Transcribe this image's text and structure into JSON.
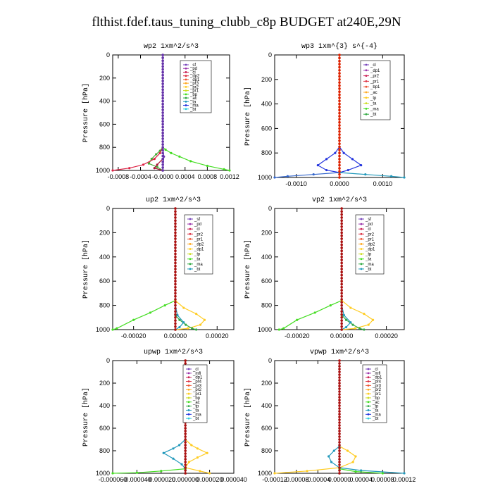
{
  "title": "flthist.fdef.taus_tuning_clubb_c8p  BUDGET at240E,29N",
  "chart_data": [
    {
      "id": "wp2",
      "type": "line",
      "title": "wp2  1xm^2/s^3",
      "ylabel": "Pressure [hPa]",
      "xlim": [
        -0.0009,
        0.0012
      ],
      "ylim": [
        1000,
        0
      ],
      "xticks": [
        -0.0008,
        -0.0004,
        0.0,
        0.0004,
        0.0008,
        0.0012
      ],
      "xtick_labels": [
        "-0.0008",
        "-0.0004",
        "-0.0000",
        "0.0004",
        "0.0008",
        "0.0012"
      ],
      "yticks": [
        0,
        200,
        400,
        600,
        800,
        1000
      ],
      "legend": [
        "_sf",
        "_pd",
        "_cl",
        "_dp2",
        "_dp1",
        "_pr3",
        "_pr2",
        "_pr1",
        "_bp",
        "_ac",
        "_ta",
        "_ma",
        "_bt"
      ],
      "series": [
        {
          "name": "_pr1",
          "color": "#44dd22",
          "points": [
            [
              0,
              800
            ],
            [
              5e-05,
              820
            ],
            [
              0.00015,
              850
            ],
            [
              0.0003,
              880
            ],
            [
              0.0005,
              920
            ],
            [
              0.0008,
              960
            ],
            [
              0.0011,
              990
            ],
            [
              0.0012,
              1000
            ]
          ]
        },
        {
          "name": "_bp",
          "color": "#44aa33",
          "points": [
            [
              0,
              800
            ],
            [
              -5e-05,
              830
            ],
            [
              -0.00012,
              860
            ],
            [
              -0.0002,
              900
            ],
            [
              -0.00025,
              940
            ],
            [
              -0.0001,
              970
            ],
            [
              0,
              1000
            ]
          ]
        },
        {
          "name": "_dp1",
          "color": "#dd2244",
          "points": [
            [
              0,
              800
            ],
            [
              -5e-05,
              850
            ],
            [
              -0.00015,
              900
            ],
            [
              -0.00035,
              950
            ],
            [
              -0.0006,
              980
            ],
            [
              -0.0009,
              1000
            ]
          ]
        },
        {
          "name": "_dp2",
          "color": "#aa1133",
          "points": [
            [
              0,
              900
            ],
            [
              -0.0001,
              950
            ],
            [
              -0.00015,
              980
            ],
            [
              0,
              1000
            ]
          ]
        },
        {
          "name": "_bt",
          "color": "#6633aa",
          "points": [
            [
              0,
              0
            ],
            [
              0,
              800
            ],
            [
              2e-05,
              880
            ],
            [
              0,
              1000
            ]
          ]
        }
      ]
    },
    {
      "id": "wp3",
      "type": "line",
      "title": "wp3  1xm^{3} s^{-4}",
      "ylabel": "Pressure [hPa]",
      "xlim": [
        -0.0015,
        0.0015
      ],
      "ylim": [
        1000,
        0
      ],
      "xticks": [
        -0.001,
        0.0,
        0.001
      ],
      "xtick_labels": [
        "-0.0010",
        "0.0000",
        "0.0010"
      ],
      "yticks": [
        0,
        200,
        400,
        600,
        800,
        1000
      ],
      "legend": [
        "_cl",
        "_dp1",
        "_pr2",
        "_pr1",
        "_bp1",
        "_ac",
        "_tp",
        "_ta",
        "_ma",
        "_bt"
      ],
      "series": [
        {
          "name": "_tp",
          "color": "#2233dd",
          "points": [
            [
              0,
              750
            ],
            [
              0.0001,
              800
            ],
            [
              0.0003,
              850
            ],
            [
              0.0005,
              900
            ],
            [
              0.0002,
              940
            ],
            [
              0,
              960
            ]
          ]
        },
        {
          "name": "_tp2",
          "color": "#2233dd",
          "points": [
            [
              0,
              750
            ],
            [
              -0.0001,
              800
            ],
            [
              -0.0003,
              850
            ],
            [
              -0.0005,
              900
            ],
            [
              -0.0003,
              940
            ],
            [
              0,
              960
            ]
          ]
        },
        {
          "name": "_ta",
          "color": "#3366cc",
          "points": [
            [
              0,
              960
            ],
            [
              -0.0006,
              975
            ],
            [
              -0.0012,
              990
            ],
            [
              -0.0015,
              1000
            ]
          ]
        },
        {
          "name": "_ta2",
          "color": "#2299bb",
          "points": [
            [
              0,
              960
            ],
            [
              0.0006,
              975
            ],
            [
              0.0012,
              990
            ],
            [
              0.0015,
              1000
            ]
          ]
        },
        {
          "name": "_bt",
          "color": "#dd2200",
          "points": [
            [
              0,
              0
            ],
            [
              0,
              1000
            ]
          ]
        }
      ]
    },
    {
      "id": "up2",
      "type": "line",
      "title": "up2  1xm^2/s^3",
      "ylabel": "Pressure [hPa]",
      "xlim": [
        -0.0003,
        0.00028
      ],
      "ylim": [
        1000,
        0
      ],
      "xticks": [
        -0.0002,
        0.0,
        0.0002
      ],
      "xtick_labels": [
        "-0.00020",
        "0.00000",
        "0.00020"
      ],
      "yticks": [
        0,
        200,
        400,
        600,
        800,
        1000
      ],
      "legend": [
        "_sf",
        "_pd",
        "_cl",
        "_pr2",
        "_pr1",
        "_dp2",
        "_dp1",
        "_tp",
        "_ta",
        "_ma",
        "_bt"
      ],
      "series": [
        {
          "name": "_dp1",
          "color": "#44dd22",
          "points": [
            [
              0,
              760
            ],
            [
              -5e-05,
              800
            ],
            [
              -0.00012,
              860
            ],
            [
              -0.0002,
              920
            ],
            [
              -0.00028,
              990
            ],
            [
              -0.0003,
              1000
            ]
          ]
        },
        {
          "name": "_pr1",
          "color": "#ffcc22",
          "points": [
            [
              0,
              760
            ],
            [
              4e-05,
              820
            ],
            [
              0.0001,
              870
            ],
            [
              0.00014,
              920
            ],
            [
              0.00012,
              960
            ],
            [
              6e-05,
              990
            ],
            [
              0,
              1000
            ]
          ]
        },
        {
          "name": "_dp2",
          "color": "#33aa44",
          "points": [
            [
              0,
              880
            ],
            [
              2e-05,
              920
            ],
            [
              5e-05,
              960
            ],
            [
              8e-05,
              990
            ],
            [
              0.0001,
              1000
            ]
          ]
        },
        {
          "name": "_tp",
          "color": "#2299bb",
          "points": [
            [
              0,
              800
            ],
            [
              1e-05,
              880
            ],
            [
              4e-05,
              940
            ],
            [
              2e-05,
              980
            ],
            [
              0,
              1000
            ]
          ]
        },
        {
          "name": "_bt",
          "color": "#aa1111",
          "points": [
            [
              0,
              0
            ],
            [
              0,
              1000
            ]
          ]
        }
      ]
    },
    {
      "id": "vp2",
      "type": "line",
      "title": "vp2  1xm^2/s^3",
      "ylabel": "Pressure [hPa]",
      "xlim": [
        -0.0003,
        0.00028
      ],
      "ylim": [
        1000,
        0
      ],
      "xticks": [
        -0.0002,
        0.0,
        0.0002
      ],
      "xtick_labels": [
        "-0.00020",
        "0.00000",
        "0.00020"
      ],
      "yticks": [
        0,
        200,
        400,
        600,
        800,
        1000
      ],
      "legend": [
        "_sf",
        "_pd",
        "_cl",
        "_pr2",
        "_pr1",
        "_dp2",
        "_dp1",
        "_tp",
        "_ta",
        "_ma",
        "_bt"
      ],
      "series": [
        {
          "name": "_dp1",
          "color": "#44dd22",
          "points": [
            [
              0,
              760
            ],
            [
              -5e-05,
              800
            ],
            [
              -0.00012,
              860
            ],
            [
              -0.0002,
              920
            ],
            [
              -0.00026,
              990
            ],
            [
              -0.00028,
              1000
            ]
          ]
        },
        {
          "name": "_pr1",
          "color": "#ffcc22",
          "points": [
            [
              0,
              760
            ],
            [
              4e-05,
              820
            ],
            [
              0.0001,
              870
            ],
            [
              0.00014,
              920
            ],
            [
              0.00012,
              960
            ],
            [
              6e-05,
              990
            ],
            [
              0,
              1000
            ]
          ]
        },
        {
          "name": "_dp2",
          "color": "#33aa44",
          "points": [
            [
              0,
              880
            ],
            [
              2e-05,
              920
            ],
            [
              5e-05,
              960
            ],
            [
              8e-05,
              990
            ],
            [
              0.0001,
              1000
            ]
          ]
        },
        {
          "name": "_tp",
          "color": "#2299bb",
          "points": [
            [
              0,
              800
            ],
            [
              1e-05,
              880
            ],
            [
              4e-05,
              940
            ],
            [
              2e-05,
              980
            ],
            [
              0,
              1000
            ]
          ]
        },
        {
          "name": "_bt",
          "color": "#aa1111",
          "points": [
            [
              0,
              0
            ],
            [
              0,
              1000
            ]
          ]
        }
      ]
    },
    {
      "id": "upwp",
      "type": "line",
      "title": "upwp  1xm^2/s^3",
      "ylabel": "Pressure [hPa]",
      "xlim": [
        -6e-05,
        4e-05
      ],
      "ylim": [
        1000,
        0
      ],
      "xticks": [
        -6e-05,
        -4e-05,
        -2e-05,
        0.0,
        2e-05,
        4e-05
      ],
      "xtick_labels": [
        "-0.000060",
        "-0.000040",
        "-0.000020",
        "0.000000",
        "0.000020",
        "0.000040"
      ],
      "yticks": [
        0,
        200,
        400,
        600,
        800,
        1000
      ],
      "legend": [
        "_cl",
        "_mfl",
        "_dp1",
        "_pr4",
        "_pr3",
        "_pr2",
        "_pr1",
        "_bp",
        "_ac",
        "_tp",
        "_ta",
        "_ma",
        "_bt"
      ],
      "series": [
        {
          "name": "_pr1",
          "color": "#ffcc22",
          "points": [
            [
              0,
              700
            ],
            [
              5e-06,
              750
            ],
            [
              1e-05,
              780
            ],
            [
              1.8e-05,
              820
            ],
            [
              1e-05,
              860
            ],
            [
              3e-06,
              900
            ],
            [
              0,
              950
            ],
            [
              1.2e-05,
              980
            ],
            [
              2e-05,
              1000
            ]
          ]
        },
        {
          "name": "_tp",
          "color": "#2299bb",
          "points": [
            [
              0,
              700
            ],
            [
              -5e-06,
              750
            ],
            [
              -1e-05,
              780
            ],
            [
              -1.8e-05,
              820
            ],
            [
              -1e-05,
              870
            ],
            [
              -3e-06,
              920
            ],
            [
              0,
              960
            ]
          ]
        },
        {
          "name": "_dp1",
          "color": "#44dd22",
          "points": [
            [
              0,
              960
            ],
            [
              -2e-05,
              980
            ],
            [
              -4e-05,
              995
            ],
            [
              -6e-05,
              1000
            ]
          ]
        },
        {
          "name": "_bp",
          "color": "#33aa44",
          "points": [
            [
              0,
              300
            ],
            [
              3e-06,
              350
            ],
            [
              0,
              400
            ],
            [
              4e-06,
              450
            ],
            [
              0,
              500
            ]
          ]
        },
        {
          "name": "_bt",
          "color": "#aa1111",
          "points": [
            [
              0,
              0
            ],
            [
              0,
              1000
            ]
          ]
        }
      ]
    },
    {
      "id": "vpwp",
      "type": "line",
      "title": "vpwp  1xm^2/s^3",
      "ylabel": "Pressure [hPa]",
      "xlim": [
        -0.00012,
        0.00012
      ],
      "ylim": [
        1000,
        0
      ],
      "xticks": [
        -0.00012,
        -8e-05,
        -4e-05,
        0.0,
        4e-05,
        8e-05,
        0.00012
      ],
      "xtick_labels": [
        "-0.00012",
        "-0.00008",
        "-0.00004",
        "0.00000",
        "0.00004",
        "0.00008",
        "0.00012"
      ],
      "yticks": [
        0,
        200,
        400,
        600,
        800,
        1000
      ],
      "legend": [
        "_cl",
        "_mfl",
        "_dp1",
        "_pr4",
        "_pr3",
        "_pr2",
        "_pr1",
        "_bp",
        "_ac",
        "_tp",
        "_ta",
        "_ma",
        "_bt"
      ],
      "series": [
        {
          "name": "_pr1",
          "color": "#ffcc22",
          "points": [
            [
              0,
              760
            ],
            [
              1.5e-05,
              800
            ],
            [
              3e-05,
              850
            ],
            [
              2.5e-05,
              900
            ],
            [
              0,
              950
            ],
            [
              -6e-05,
              980
            ],
            [
              -0.00012,
              1000
            ]
          ]
        },
        {
          "name": "_tp",
          "color": "#2299bb",
          "points": [
            [
              0,
              760
            ],
            [
              -1e-05,
              800
            ],
            [
              -2e-05,
              850
            ],
            [
              -1.5e-05,
              900
            ],
            [
              0,
              950
            ],
            [
              4e-05,
              975
            ],
            [
              0.00012,
              1000
            ]
          ]
        },
        {
          "name": "_dp1",
          "color": "#44dd22",
          "points": [
            [
              0,
              960
            ],
            [
              3e-05,
              985
            ],
            [
              8e-05,
              1000
            ]
          ]
        },
        {
          "name": "_bt",
          "color": "#aa1111",
          "points": [
            [
              0,
              0
            ],
            [
              0,
              1000
            ]
          ]
        }
      ]
    }
  ]
}
